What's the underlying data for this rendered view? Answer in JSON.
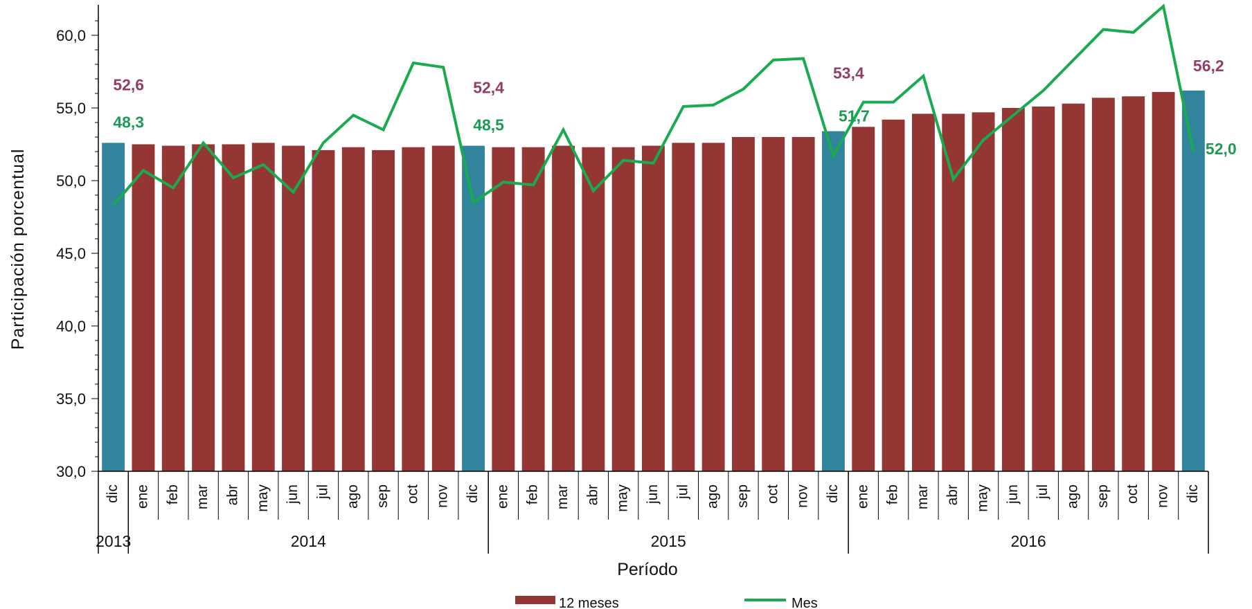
{
  "chart_data": {
    "type": "bar",
    "ylabel": "Participación porcentual",
    "xlabel": "Período",
    "ylim": [
      30,
      60
    ],
    "yticks": [
      "30,0",
      "35,0",
      "40,0",
      "45,0",
      "50,0",
      "55,0",
      "60,0"
    ],
    "ytick_values": [
      30,
      35,
      40,
      45,
      50,
      55,
      60
    ],
    "categories": [
      "dic",
      "ene",
      "feb",
      "mar",
      "abr",
      "may",
      "jun",
      "jul",
      "ago",
      "sep",
      "oct",
      "nov",
      "dic",
      "ene",
      "feb",
      "mar",
      "abr",
      "may",
      "jun",
      "jul",
      "ago",
      "sep",
      "oct",
      "nov",
      "dic",
      "ene",
      "feb",
      "mar",
      "abr",
      "may",
      "jun",
      "jul",
      "ago",
      "sep",
      "oct",
      "nov",
      "dic"
    ],
    "years": [
      {
        "label": "2013",
        "start": 0,
        "end": 0
      },
      {
        "label": "2014",
        "start": 1,
        "end": 12
      },
      {
        "label": "2015",
        "start": 13,
        "end": 24
      },
      {
        "label": "2016",
        "start": 25,
        "end": 36
      }
    ],
    "series": [
      {
        "name": "12 meses",
        "kind": "bar",
        "color": "#943634",
        "highlight_color": "#31849B",
        "highlight_indices": [
          0,
          12,
          24,
          36
        ],
        "values": [
          52.6,
          52.5,
          52.4,
          52.5,
          52.5,
          52.6,
          52.4,
          52.1,
          52.3,
          52.1,
          52.3,
          52.4,
          52.4,
          52.3,
          52.3,
          52.4,
          52.3,
          52.3,
          52.4,
          52.6,
          52.6,
          53.0,
          53.0,
          53.0,
          53.4,
          53.7,
          54.2,
          54.6,
          54.6,
          54.7,
          55.0,
          55.1,
          55.3,
          55.7,
          55.8,
          56.1,
          56.2
        ]
      },
      {
        "name": "Mes",
        "kind": "line",
        "color": "#1AAB4E",
        "values": [
          48.3,
          50.7,
          49.5,
          52.6,
          50.2,
          51.1,
          49.2,
          52.6,
          54.5,
          53.5,
          58.1,
          57.8,
          48.5,
          49.9,
          49.7,
          53.5,
          49.3,
          51.4,
          51.2,
          55.1,
          55.2,
          56.3,
          58.3,
          58.4,
          51.7,
          55.4,
          55.4,
          57.2,
          50.1,
          52.8,
          54.5,
          56.2,
          58.3,
          60.4,
          60.2,
          62.0,
          52.0
        ]
      }
    ],
    "data_labels": [
      {
        "index": 0,
        "text": "52,6",
        "series": "12 meses",
        "color": "#943E66"
      },
      {
        "index": 0,
        "text": "48,3",
        "series": "Mes",
        "color": "#1E9A57"
      },
      {
        "index": 12,
        "text": "52,4",
        "series": "12 meses",
        "color": "#943E66"
      },
      {
        "index": 12,
        "text": "48,5",
        "series": "Mes",
        "color": "#1E9A57"
      },
      {
        "index": 24,
        "text": "53,4",
        "series": "12 meses",
        "color": "#943E66"
      },
      {
        "index": 24,
        "text": "51,7",
        "series": "Mes",
        "color": "#1E9A57"
      },
      {
        "index": 36,
        "text": "56,2",
        "series": "12 meses",
        "color": "#943E66"
      },
      {
        "index": 36,
        "text": "52,0",
        "series": "Mes",
        "color": "#1E9A57"
      }
    ],
    "legend": {
      "placement": "bottom",
      "items": [
        {
          "label": "12 meses",
          "kind": "bar",
          "color": "#943634"
        },
        {
          "label": "Mes",
          "kind": "line",
          "color": "#1AAB4E"
        }
      ]
    },
    "grid": false
  }
}
